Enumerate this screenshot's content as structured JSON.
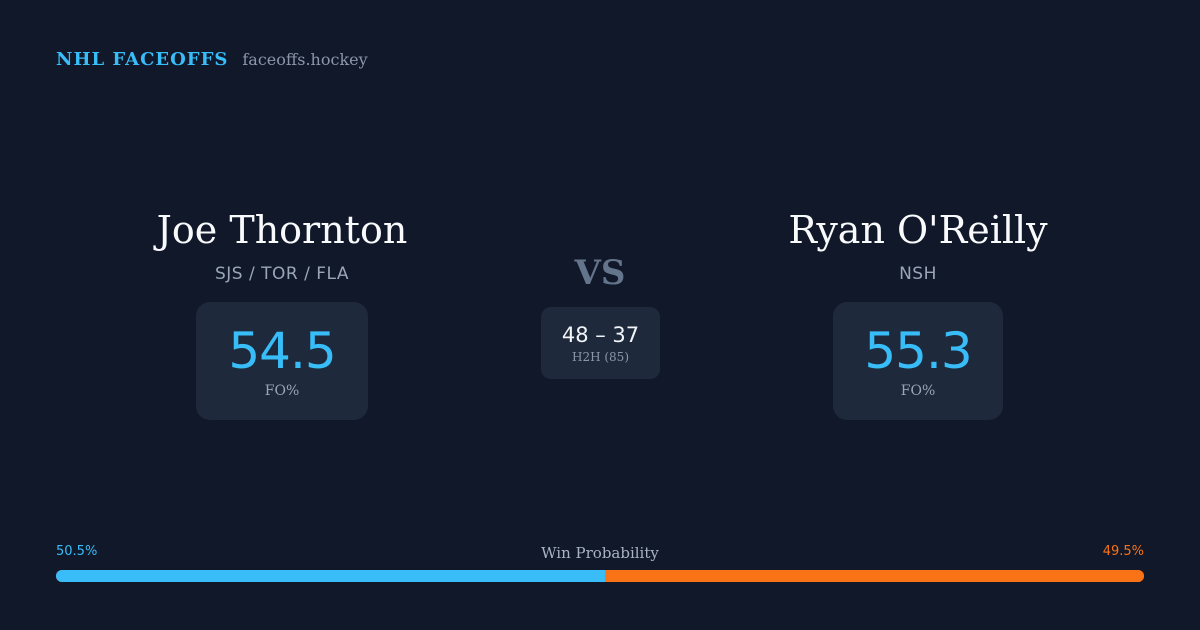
{
  "brand": {
    "name": "NHL FACEOFFS",
    "url": "faceoffs.hockey"
  },
  "player_left": {
    "name": "Joe Thornton",
    "teams": "SJS / TOR / FLA",
    "fo_pct": "54.5",
    "fo_label": "FO%"
  },
  "player_right": {
    "name": "Ryan O'Reilly",
    "teams": "NSH",
    "fo_pct": "55.3",
    "fo_label": "FO%"
  },
  "vs_label": "VS",
  "head_to_head": {
    "score": "48 – 37",
    "label": "H2H (85)"
  },
  "win_probability": {
    "title": "Win Probability",
    "left_pct_text": "50.5%",
    "right_pct_text": "49.5%",
    "left_fraction": 0.505,
    "right_fraction": 0.495
  },
  "colors": {
    "background": "#10182a",
    "card": "#1e293b",
    "accent_left": "#38bdf8",
    "accent_right": "#f97316",
    "muted": "#64748b"
  }
}
